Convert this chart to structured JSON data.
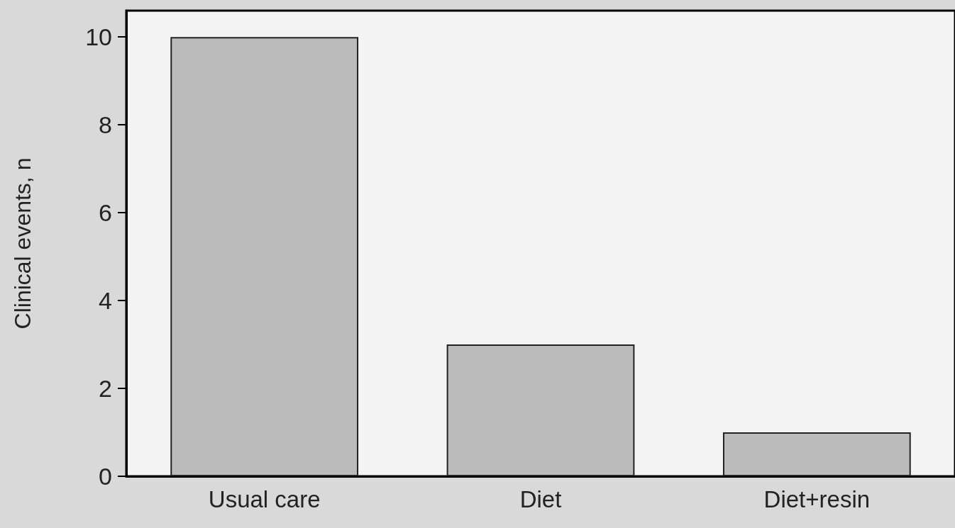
{
  "chart_data": {
    "type": "bar",
    "ylabel": "Clinical events, n",
    "categories": [
      "Usual care",
      "Diet",
      "Diet+resin"
    ],
    "values": [
      10,
      3,
      1
    ],
    "color": "#bbbbbb",
    "ylim": [
      0,
      10.6
    ],
    "yticks": [
      0,
      2,
      4,
      6,
      8,
      10
    ],
    "grid": false
  }
}
